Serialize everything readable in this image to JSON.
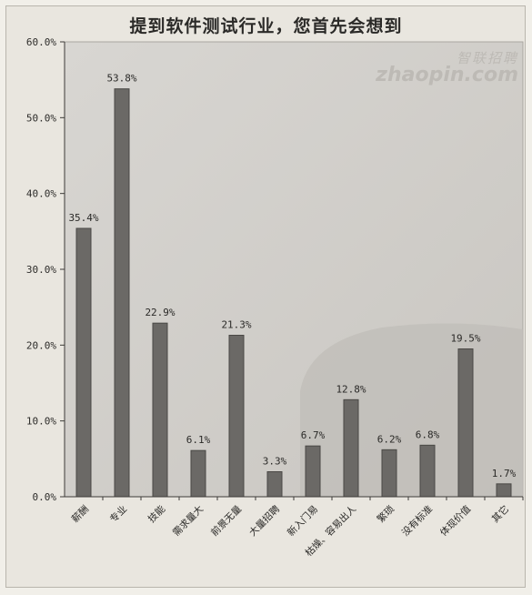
{
  "chart_data": {
    "type": "bar",
    "title": "提到软件测试行业，您首先会想到",
    "xlabel": "",
    "ylabel": "",
    "ylim": [
      0,
      60
    ],
    "yticks": [
      "0.0%",
      "10.0%",
      "20.0%",
      "30.0%",
      "40.0%",
      "50.0%",
      "60.0%"
    ],
    "grid": false,
    "categories": [
      "薪酬",
      "专业",
      "技能",
      "需求量大",
      "前景无量",
      "大量招聘",
      "新入门易",
      "枯燥、容易出人",
      "繁琐",
      "没有标准",
      "体现价值",
      "其它"
    ],
    "values": [
      35.4,
      53.8,
      22.9,
      6.1,
      21.3,
      3.3,
      6.7,
      12.8,
      6.2,
      6.8,
      19.5,
      1.7
    ],
    "data_labels": [
      "35.4%",
      "53.8%",
      "22.9%",
      "6.1%",
      "21.3%",
      "3.3%",
      "6.7%",
      "12.8%",
      "6.2%",
      "6.8%",
      "19.5%",
      "1.7%"
    ],
    "colors": {
      "bar": "#6b6966",
      "bar_edge": "#4a4845",
      "plot_bg": "#d0cdc8",
      "accent_bg": "#bfbcb7"
    }
  },
  "watermark": {
    "cn": "智联招聘",
    "en": "zhaopin.com"
  }
}
